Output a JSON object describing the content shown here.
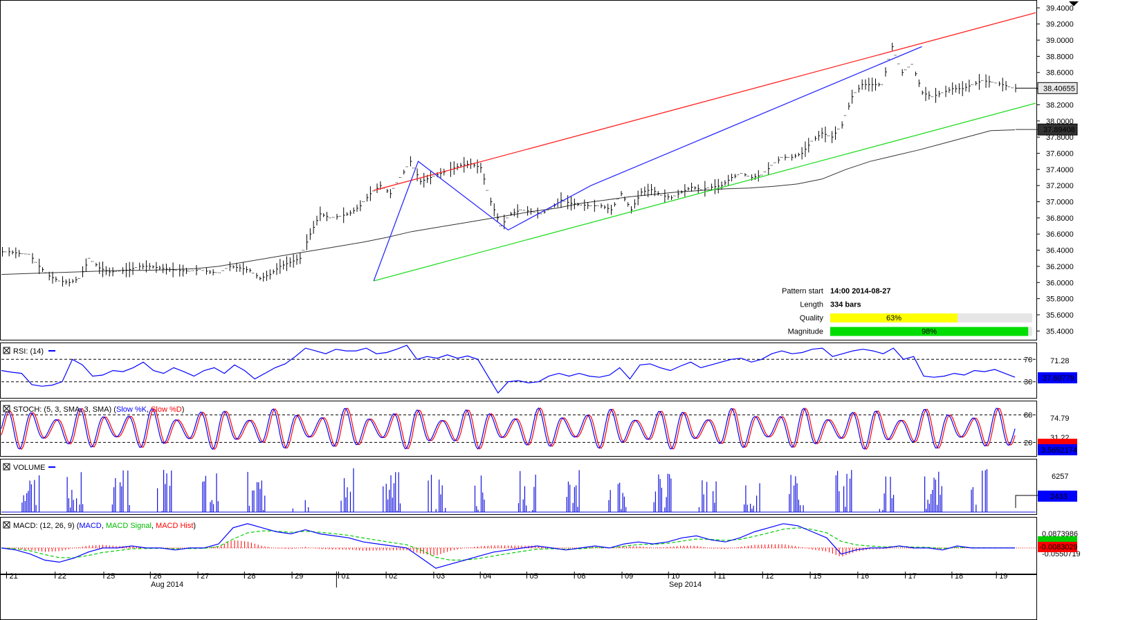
{
  "chart_data": {
    "type": "line",
    "price_panel": {
      "ylim": [
        35.3,
        39.48
      ],
      "y_ticks": [
        "35.4000",
        "35.6000",
        "35.8000",
        "36.0000",
        "36.2000",
        "36.4000",
        "36.6000",
        "36.8000",
        "37.0000",
        "37.2000",
        "37.4000",
        "37.6000",
        "37.8000",
        "38.0000",
        "38.2000",
        "38.4000",
        "38.6000",
        "38.8000",
        "39.0000",
        "39.2000",
        "39.4000"
      ],
      "last_price_label": "38.40655",
      "ma_label": "37.89408",
      "last_price": 38.40655,
      "ma_value": 37.89408,
      "close_series": [
        36.38,
        36.36,
        36.35,
        36.2,
        36.08,
        36.02,
        36.0,
        36.05,
        36.3,
        36.18,
        36.13,
        36.14,
        36.16,
        36.2,
        36.2,
        36.18,
        36.16,
        36.15,
        36.14,
        36.16,
        36.13,
        36.12,
        36.2,
        36.18,
        36.15,
        36.05,
        36.1,
        36.2,
        36.25,
        36.3,
        36.6,
        36.85,
        36.8,
        36.82,
        36.86,
        36.95,
        37.1,
        37.2,
        37.1,
        37.3,
        37.5,
        37.25,
        37.3,
        37.35,
        37.4,
        37.45,
        37.47,
        37.42,
        37.0,
        36.7,
        36.85,
        36.9,
        36.88,
        36.85,
        36.92,
        37.02,
        36.98,
        36.96,
        36.95,
        36.95,
        36.9,
        37.1,
        36.9,
        37.12,
        37.15,
        37.08,
        37.05,
        37.12,
        37.18,
        37.15,
        37.18,
        37.2,
        37.3,
        37.35,
        37.3,
        37.33,
        37.45,
        37.55,
        37.55,
        37.6,
        37.75,
        37.85,
        37.8,
        37.95,
        38.3,
        38.45,
        38.45,
        38.45,
        38.92,
        38.6,
        38.7,
        38.35,
        38.3,
        38.35,
        38.4,
        38.4,
        38.45,
        38.5,
        38.48,
        38.45,
        38.41
      ],
      "ma_series": [
        36.1,
        36.11,
        36.12,
        36.13,
        36.14,
        36.15,
        36.15,
        36.16,
        36.17,
        36.2,
        36.25,
        36.3,
        36.35,
        36.4,
        36.45,
        36.5,
        36.56,
        36.63,
        36.68,
        36.73,
        36.78,
        36.83,
        36.88,
        36.92,
        36.98,
        37.02,
        37.06,
        37.09,
        37.12,
        37.14,
        37.16,
        37.17,
        37.19,
        37.22,
        37.28,
        37.4,
        37.5,
        37.57,
        37.64,
        37.72,
        37.8,
        37.88,
        37.89
      ],
      "upper_trendline": [
        [
          36.0,
          37.14
        ],
        [
          100.0,
          39.34
        ]
      ],
      "lower_trendline": [
        [
          36.0,
          36.02
        ],
        [
          100.0,
          38.22
        ]
      ],
      "zigzag": [
        [
          36.0,
          36.02
        ],
        [
          40.3,
          37.5
        ],
        [
          49.0,
          36.65
        ],
        [
          57.0,
          37.2
        ],
        [
          89.0,
          38.92
        ]
      ],
      "pattern_info": {
        "pattern_start_label": "Pattern start",
        "pattern_start_value": "14:00 2014-08-27",
        "length_label": "Length",
        "length_value": "334 bars",
        "quality_label": "Quality",
        "quality_value": "63%",
        "quality_fraction": 0.63,
        "magnitude_label": "Magnitude",
        "magnitude_value": "98%",
        "magnitude_fraction": 0.98
      }
    },
    "rsi_panel": {
      "title": "RSI: (14)",
      "levels": [
        70,
        30
      ],
      "level_labels": [
        "70",
        "30"
      ],
      "right_labels": [
        "71.28"
      ],
      "current_label": "37.60779",
      "ylim": [
        5,
        95
      ],
      "series": [
        50,
        47,
        45,
        25,
        22,
        24,
        30,
        70,
        60,
        40,
        42,
        50,
        48,
        55,
        65,
        50,
        45,
        55,
        48,
        40,
        50,
        55,
        45,
        60,
        50,
        35,
        45,
        55,
        62,
        75,
        90,
        85,
        80,
        88,
        85,
        85,
        90,
        80,
        82,
        88,
        95,
        70,
        75,
        72,
        78,
        72,
        76,
        70,
        40,
        10,
        30,
        32,
        28,
        30,
        40,
        45,
        40,
        45,
        40,
        38,
        42,
        55,
        35,
        60,
        62,
        55,
        50,
        58,
        65,
        55,
        60,
        65,
        70,
        72,
        65,
        70,
        80,
        85,
        80,
        82,
        88,
        90,
        75,
        80,
        85,
        88,
        85,
        80,
        90,
        70,
        75,
        40,
        38,
        40,
        45,
        42,
        50,
        48,
        52,
        45,
        38
      ]
    },
    "stoch_panel": {
      "title_prefix": "STOCH: (5, 3, SMA, 3, SMA) (",
      "k_label": "Slow %K",
      "sep": ", ",
      "d_label": "Slow %D",
      "title_suffix": ")",
      "levels": [
        80,
        20
      ],
      "level_labels": [
        "80",
        "20"
      ],
      "right_labels": [
        "74.79",
        "31.22"
      ],
      "current_label": "3.5652174",
      "ylim": [
        -5,
        105
      ],
      "cycles": 42
    },
    "volume_panel": {
      "title": "VOLUME",
      "right_label": "6257",
      "current_label": "2433",
      "ylim": [
        0,
        7500
      ],
      "clusters": 22
    },
    "macd_panel": {
      "title_prefix": "MACD: (12, 26, 9) (",
      "macd_label": "MACD",
      "sep": ", ",
      "signal_label": "MACD Signal",
      "hist_label": "MACD Hist",
      "title_suffix": ")",
      "right_labels": [
        "0.0873986",
        "-0.0550719"
      ],
      "current_label": "-0.0083029",
      "ylim": [
        -0.12,
        0.14
      ],
      "series": [
        0.0,
        -0.01,
        -0.03,
        -0.06,
        -0.07,
        -0.05,
        -0.02,
        0.0,
        0.0,
        0.01,
        0.0,
        0.0,
        -0.01,
        0.0,
        0.0,
        0.02,
        0.1,
        0.12,
        0.1,
        0.08,
        0.07,
        0.09,
        0.07,
        0.06,
        0.05,
        0.03,
        0.02,
        0.01,
        0.0,
        -0.05,
        -0.1,
        -0.08,
        -0.06,
        -0.04,
        -0.02,
        -0.01,
        0.0,
        0.01,
        0.0,
        -0.01,
        0.0,
        0.01,
        0.0,
        0.02,
        0.03,
        0.02,
        0.03,
        0.05,
        0.06,
        0.04,
        0.03,
        0.05,
        0.08,
        0.1,
        0.12,
        0.11,
        0.08,
        0.05,
        -0.03,
        -0.01,
        0.0,
        0.0,
        0.01,
        0.0,
        0.0,
        -0.01,
        0.01,
        0.0,
        0.0,
        0.0,
        0.0
      ]
    },
    "x_axis": {
      "labels": [
        "21",
        "22",
        "25",
        "26",
        "27",
        "28",
        "29",
        "01",
        "02",
        "03",
        "04",
        "05",
        "08",
        "09",
        "10",
        "11",
        "12",
        "15",
        "16",
        "17",
        "18",
        "19"
      ],
      "month_labels": [
        "Aug 2014",
        "Sep 2014"
      ]
    }
  }
}
